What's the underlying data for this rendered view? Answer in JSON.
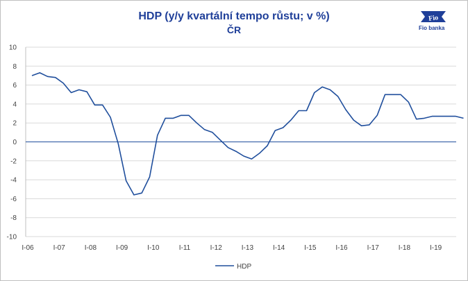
{
  "title": "HDP (y/y kvartální tempo růstu; v %)",
  "subtitle": "ČR",
  "logo_text": "Fio banka",
  "logo_mark": "Fio",
  "colors": {
    "series": "#1f4e9c",
    "grid": "#d9d9d9",
    "title": "#1f3f99"
  },
  "chart_data": {
    "type": "line",
    "title": "HDP (y/y kvartální tempo růstu; v %)",
    "subtitle": "ČR",
    "xlabel": "",
    "ylabel": "",
    "ylim": [
      -10,
      10
    ],
    "yticks": [
      10,
      8,
      6,
      4,
      2,
      0,
      -2,
      -4,
      -6,
      -8,
      -10
    ],
    "xticks": [
      "I-06",
      "I-07",
      "I-08",
      "I-09",
      "I-10",
      "I-11",
      "I-12",
      "I-13",
      "I-14",
      "I-15",
      "I-16",
      "I-17",
      "I-18",
      "I-19"
    ],
    "grid": "horizontal",
    "legend": "bottom",
    "series": [
      {
        "name": "HDP",
        "values": [
          7.0,
          7.3,
          6.9,
          6.8,
          6.2,
          5.2,
          5.5,
          5.3,
          3.9,
          3.9,
          2.6,
          -0.2,
          -4.1,
          -5.6,
          -5.4,
          -3.7,
          0.7,
          2.5,
          2.5,
          2.8,
          2.8,
          2.0,
          1.3,
          1.0,
          0.2,
          -0.6,
          -1.0,
          -1.5,
          -1.8,
          -1.2,
          -0.4,
          1.2,
          1.5,
          2.3,
          3.3,
          3.3,
          5.2,
          5.8,
          5.5,
          4.8,
          3.4,
          2.3,
          1.7,
          1.8,
          2.8,
          5.0,
          5.0,
          5.0,
          4.2,
          2.4,
          2.5,
          2.7,
          2.7,
          2.7,
          2.7,
          2.5
        ]
      }
    ]
  }
}
